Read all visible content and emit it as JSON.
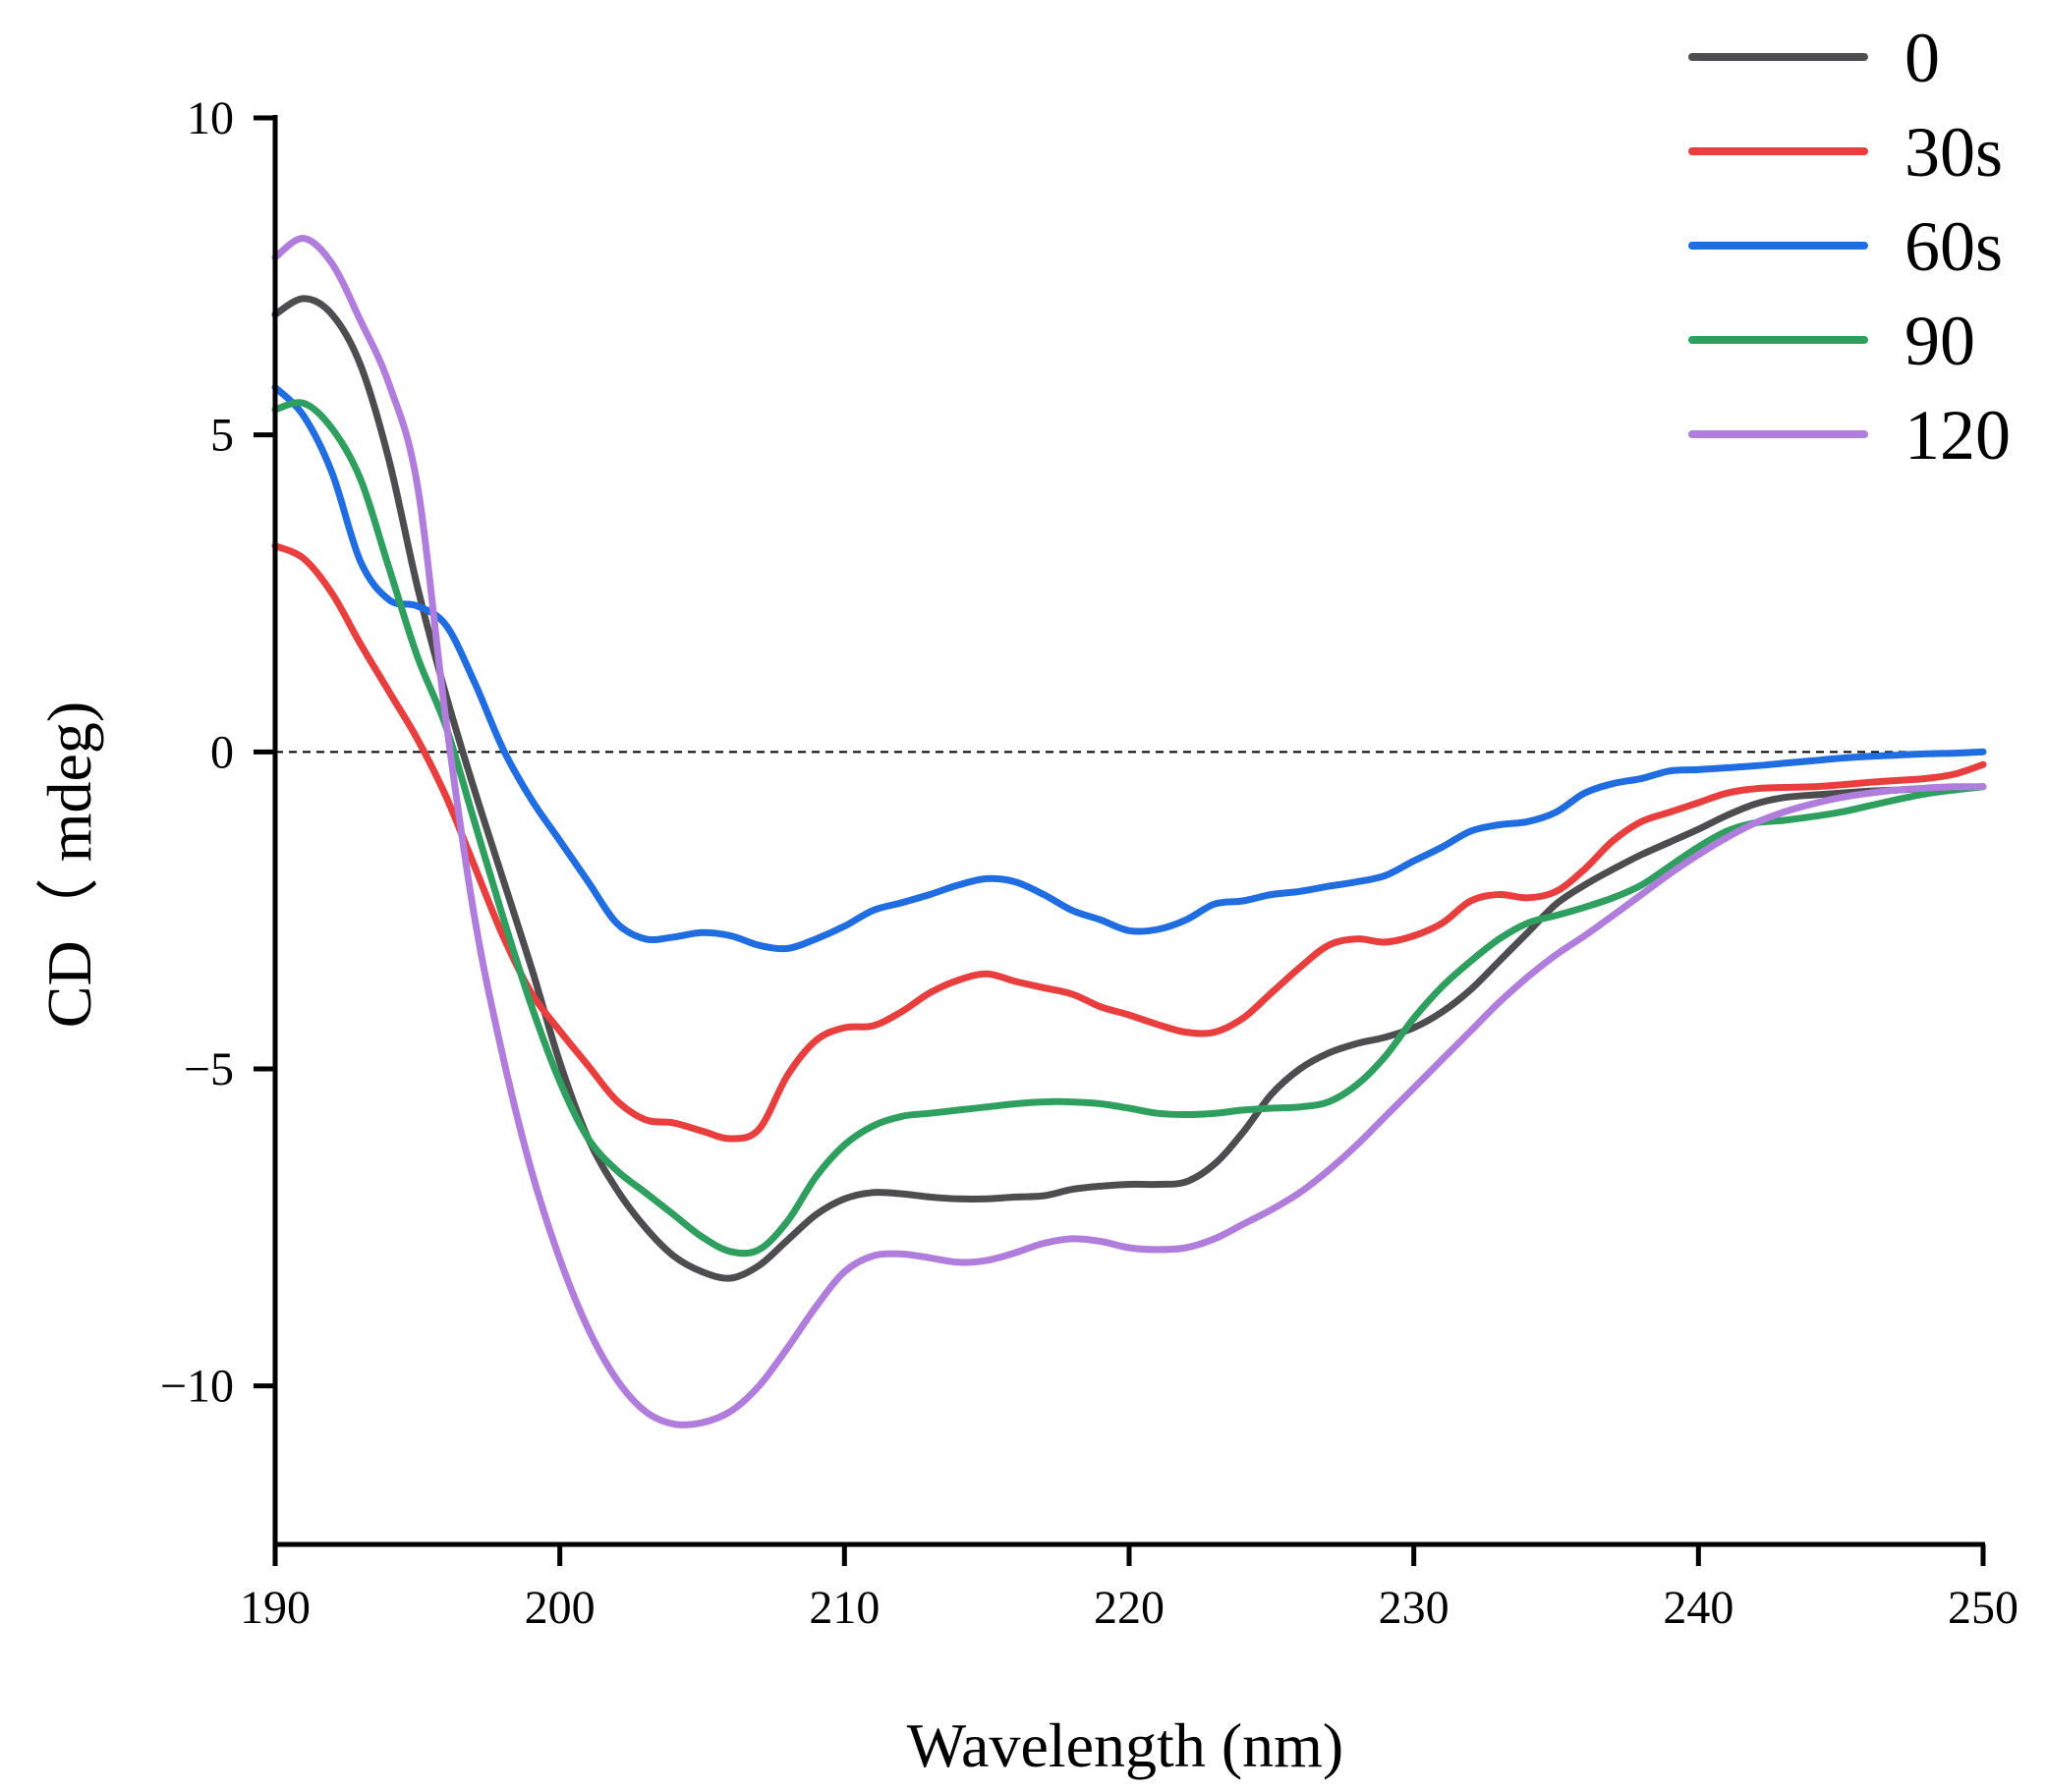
{
  "chart_data": {
    "type": "line",
    "title": "",
    "xlabel": "Wavelength (nm)",
    "ylabel": "CD（ mdeg)",
    "xlim": [
      190,
      250
    ],
    "ylim": [
      -12.5,
      10
    ],
    "xticks": [
      190,
      200,
      210,
      220,
      230,
      240,
      250
    ],
    "xtick_labels": [
      "190",
      "200",
      "210",
      "220",
      "230",
      "240",
      "250"
    ],
    "yticks": [
      -10,
      -5,
      0,
      5,
      10
    ],
    "ytick_labels": [
      "−10",
      "−5",
      "0",
      "5",
      "10"
    ],
    "reference_line": {
      "y": 0,
      "style": "dashed"
    },
    "legend_position": "top-right",
    "series": [
      {
        "name": "0",
        "color": "#4d4d4f",
        "x": [
          190,
          191,
          192,
          193,
          194,
          195,
          196,
          197,
          198,
          199,
          200,
          201,
          202,
          203,
          204,
          205,
          206,
          207,
          208,
          209,
          210,
          211,
          212,
          213,
          214,
          215,
          216,
          217,
          218,
          219,
          220,
          221,
          222,
          223,
          224,
          225,
          226,
          227,
          228,
          229,
          230,
          231,
          232,
          233,
          234,
          235,
          236,
          237,
          238,
          239,
          240,
          241,
          242,
          243,
          244,
          245,
          246,
          247,
          248,
          249,
          250
        ],
        "y": [
          6.9,
          7.15,
          6.9,
          6.1,
          4.6,
          2.6,
          0.9,
          -0.6,
          -2.0,
          -3.4,
          -4.9,
          -6.1,
          -6.9,
          -7.5,
          -7.95,
          -8.2,
          -8.3,
          -8.1,
          -7.7,
          -7.3,
          -7.05,
          -6.95,
          -6.97,
          -7.02,
          -7.05,
          -7.05,
          -7.02,
          -7.0,
          -6.9,
          -6.85,
          -6.82,
          -6.82,
          -6.78,
          -6.5,
          -6.0,
          -5.4,
          -5.0,
          -4.75,
          -4.6,
          -4.5,
          -4.35,
          -4.1,
          -3.75,
          -3.3,
          -2.85,
          -2.4,
          -2.1,
          -1.85,
          -1.62,
          -1.42,
          -1.22,
          -1.0,
          -0.82,
          -0.72,
          -0.68,
          -0.65,
          -0.62,
          -0.6,
          -0.58,
          -0.57,
          -0.55
        ]
      },
      {
        "name": "30s",
        "color": "#e83e3e",
        "x": [
          190,
          191,
          192,
          193,
          194,
          195,
          196,
          197,
          198,
          199,
          200,
          201,
          202,
          203,
          204,
          205,
          206,
          207,
          208,
          209,
          210,
          211,
          212,
          213,
          214,
          215,
          216,
          217,
          218,
          219,
          220,
          221,
          222,
          223,
          224,
          225,
          226,
          227,
          228,
          229,
          230,
          231,
          232,
          233,
          234,
          235,
          236,
          237,
          238,
          239,
          240,
          241,
          242,
          243,
          244,
          245,
          246,
          247,
          248,
          249,
          250
        ],
        "y": [
          3.25,
          3.05,
          2.5,
          1.7,
          0.95,
          0.2,
          -0.7,
          -1.8,
          -2.9,
          -3.8,
          -4.4,
          -4.95,
          -5.5,
          -5.8,
          -5.85,
          -5.98,
          -6.1,
          -5.95,
          -5.1,
          -4.55,
          -4.35,
          -4.32,
          -4.1,
          -3.8,
          -3.6,
          -3.5,
          -3.62,
          -3.72,
          -3.82,
          -4.02,
          -4.15,
          -4.3,
          -4.42,
          -4.42,
          -4.2,
          -3.8,
          -3.4,
          -3.05,
          -2.95,
          -3.0,
          -2.9,
          -2.7,
          -2.35,
          -2.25,
          -2.3,
          -2.2,
          -1.85,
          -1.4,
          -1.1,
          -0.95,
          -0.8,
          -0.65,
          -0.58,
          -0.56,
          -0.55,
          -0.52,
          -0.48,
          -0.45,
          -0.42,
          -0.35,
          -0.2
        ]
      },
      {
        "name": "60s",
        "color": "#1f6de0",
        "x": [
          190,
          191,
          192,
          193,
          194,
          195,
          196,
          197,
          198,
          199,
          200,
          201,
          202,
          203,
          204,
          205,
          206,
          207,
          208,
          209,
          210,
          211,
          212,
          213,
          214,
          215,
          216,
          217,
          218,
          219,
          220,
          221,
          222,
          223,
          224,
          225,
          226,
          227,
          228,
          229,
          230,
          231,
          232,
          233,
          234,
          235,
          236,
          237,
          238,
          239,
          240,
          241,
          242,
          243,
          244,
          245,
          246,
          247,
          248,
          249,
          250
        ],
        "y": [
          5.75,
          5.3,
          4.4,
          3.0,
          2.4,
          2.3,
          2.0,
          1.1,
          0.05,
          -0.75,
          -1.4,
          -2.05,
          -2.7,
          -2.95,
          -2.92,
          -2.85,
          -2.9,
          -3.05,
          -3.1,
          -2.95,
          -2.75,
          -2.5,
          -2.38,
          -2.25,
          -2.1,
          -2.0,
          -2.05,
          -2.25,
          -2.5,
          -2.65,
          -2.82,
          -2.8,
          -2.65,
          -2.4,
          -2.35,
          -2.25,
          -2.2,
          -2.12,
          -2.05,
          -1.95,
          -1.72,
          -1.5,
          -1.25,
          -1.15,
          -1.1,
          -0.95,
          -0.65,
          -0.5,
          -0.42,
          -0.3,
          -0.28,
          -0.25,
          -0.22,
          -0.18,
          -0.14,
          -0.1,
          -0.07,
          -0.05,
          -0.03,
          -0.02,
          0.0
        ]
      },
      {
        "name": "90",
        "color": "#2e9f5e",
        "x": [
          190,
          191,
          192,
          193,
          194,
          195,
          196,
          197,
          198,
          199,
          200,
          201,
          202,
          203,
          204,
          205,
          206,
          207,
          208,
          209,
          210,
          211,
          212,
          213,
          214,
          215,
          216,
          217,
          218,
          219,
          220,
          221,
          222,
          223,
          224,
          225,
          226,
          227,
          228,
          229,
          230,
          231,
          232,
          233,
          234,
          235,
          236,
          237,
          238,
          239,
          240,
          241,
          242,
          243,
          244,
          245,
          246,
          247,
          248,
          249,
          250
        ],
        "y": [
          5.4,
          5.5,
          5.1,
          4.3,
          2.9,
          1.5,
          0.4,
          -1.1,
          -2.6,
          -4.0,
          -5.2,
          -6.1,
          -6.6,
          -6.95,
          -7.3,
          -7.65,
          -7.88,
          -7.85,
          -7.4,
          -6.7,
          -6.2,
          -5.9,
          -5.75,
          -5.7,
          -5.65,
          -5.6,
          -5.55,
          -5.52,
          -5.52,
          -5.55,
          -5.62,
          -5.7,
          -5.72,
          -5.7,
          -5.65,
          -5.62,
          -5.6,
          -5.52,
          -5.25,
          -4.8,
          -4.2,
          -3.7,
          -3.3,
          -2.95,
          -2.7,
          -2.58,
          -2.45,
          -2.3,
          -2.1,
          -1.8,
          -1.5,
          -1.25,
          -1.12,
          -1.08,
          -1.02,
          -0.95,
          -0.85,
          -0.75,
          -0.66,
          -0.6,
          -0.55
        ]
      },
      {
        "name": "120",
        "color": "#b07ddc",
        "x": [
          190,
          191,
          192,
          193,
          194,
          195,
          196,
          197,
          198,
          199,
          200,
          201,
          202,
          203,
          204,
          205,
          206,
          207,
          208,
          209,
          210,
          211,
          212,
          213,
          214,
          215,
          216,
          217,
          218,
          219,
          220,
          221,
          222,
          223,
          224,
          225,
          226,
          227,
          228,
          229,
          230,
          231,
          232,
          233,
          234,
          235,
          236,
          237,
          238,
          239,
          240,
          241,
          242,
          243,
          244,
          245,
          246,
          247,
          248,
          249,
          250
        ],
        "y": [
          7.8,
          8.1,
          7.7,
          6.8,
          5.8,
          4.2,
          0.5,
          -2.6,
          -4.8,
          -6.6,
          -8.0,
          -9.1,
          -9.9,
          -10.4,
          -10.6,
          -10.58,
          -10.4,
          -10.0,
          -9.4,
          -8.75,
          -8.2,
          -7.95,
          -7.92,
          -7.98,
          -8.05,
          -8.02,
          -7.9,
          -7.75,
          -7.68,
          -7.72,
          -7.82,
          -7.85,
          -7.82,
          -7.68,
          -7.45,
          -7.22,
          -6.95,
          -6.6,
          -6.2,
          -5.75,
          -5.3,
          -4.85,
          -4.4,
          -3.95,
          -3.55,
          -3.2,
          -2.9,
          -2.58,
          -2.25,
          -1.92,
          -1.62,
          -1.35,
          -1.12,
          -0.95,
          -0.82,
          -0.72,
          -0.65,
          -0.6,
          -0.57,
          -0.55,
          -0.55
        ]
      }
    ]
  }
}
